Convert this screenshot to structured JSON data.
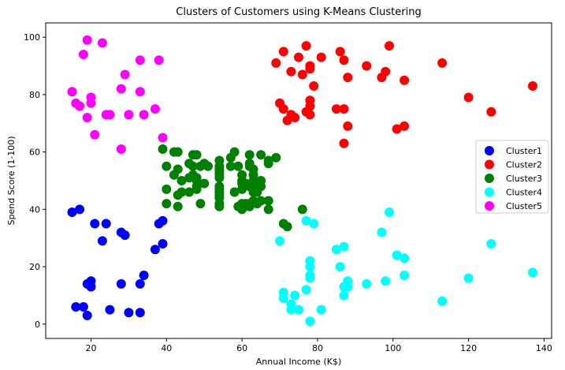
{
  "chart_data": {
    "type": "scatter",
    "title": "Clusters of Customers using K-Means Clustering",
    "xlabel": "Annual Income (K$)",
    "ylabel": "Spend Score (1-100)",
    "xlim": [
      8,
      142
    ],
    "ylim": [
      -5,
      105
    ],
    "xticks": [
      20,
      40,
      60,
      80,
      100,
      120,
      140
    ],
    "yticks": [
      0,
      20,
      40,
      60,
      80,
      100
    ],
    "grid": false,
    "legend_position": "center-right",
    "series": [
      {
        "name": "Cluster1",
        "color": "#0000ff",
        "points": [
          [
            15,
            39
          ],
          [
            16,
            6
          ],
          [
            17,
            40
          ],
          [
            18,
            6
          ],
          [
            19,
            14
          ],
          [
            19,
            3
          ],
          [
            20,
            15
          ],
          [
            20,
            13
          ],
          [
            21,
            35
          ],
          [
            23,
            29
          ],
          [
            24,
            35
          ],
          [
            25,
            5
          ],
          [
            28,
            32
          ],
          [
            28,
            14
          ],
          [
            29,
            31
          ],
          [
            30,
            4
          ],
          [
            33,
            4
          ],
          [
            33,
            14
          ],
          [
            34,
            17
          ],
          [
            37,
            26
          ],
          [
            38,
            35
          ],
          [
            39,
            36
          ],
          [
            39,
            28
          ]
        ]
      },
      {
        "name": "Cluster2",
        "color": "#ff0000",
        "points": [
          [
            69,
            91
          ],
          [
            70,
            77
          ],
          [
            71,
            95
          ],
          [
            71,
            75
          ],
          [
            72,
            71
          ],
          [
            73,
            88
          ],
          [
            73,
            73
          ],
          [
            74,
            72
          ],
          [
            75,
            93
          ],
          [
            76,
            87
          ],
          [
            77,
            97
          ],
          [
            77,
            74
          ],
          [
            78,
            90
          ],
          [
            78,
            76
          ],
          [
            78,
            89
          ],
          [
            78,
            78
          ],
          [
            78,
            73
          ],
          [
            79,
            83
          ],
          [
            81,
            93
          ],
          [
            85,
            75
          ],
          [
            86,
            95
          ],
          [
            87,
            63
          ],
          [
            87,
            75
          ],
          [
            87,
            92
          ],
          [
            88,
            86
          ],
          [
            88,
            69
          ],
          [
            93,
            90
          ],
          [
            97,
            86
          ],
          [
            98,
            88
          ],
          [
            99,
            97
          ],
          [
            101,
            68
          ],
          [
            103,
            85
          ],
          [
            103,
            69
          ],
          [
            113,
            91
          ],
          [
            120,
            79
          ],
          [
            126,
            74
          ],
          [
            137,
            83
          ]
        ]
      },
      {
        "name": "Cluster3",
        "color": "#008000",
        "points": [
          [
            39,
            61
          ],
          [
            40,
            55
          ],
          [
            40,
            47
          ],
          [
            40,
            42
          ],
          [
            42,
            52
          ],
          [
            42,
            60
          ],
          [
            43,
            54
          ],
          [
            43,
            60
          ],
          [
            43,
            45
          ],
          [
            43,
            41
          ],
          [
            44,
            50
          ],
          [
            44,
            46
          ],
          [
            46,
            51
          ],
          [
            46,
            46
          ],
          [
            46,
            56
          ],
          [
            47,
            55
          ],
          [
            47,
            52
          ],
          [
            47,
            59
          ],
          [
            48,
            51
          ],
          [
            48,
            59
          ],
          [
            48,
            50
          ],
          [
            48,
            48
          ],
          [
            48,
            47
          ],
          [
            49,
            55
          ],
          [
            49,
            42
          ],
          [
            50,
            49
          ],
          [
            50,
            56
          ],
          [
            51,
            55
          ],
          [
            54,
            47
          ],
          [
            54,
            45
          ],
          [
            54,
            54
          ],
          [
            54,
            53
          ],
          [
            54,
            48
          ],
          [
            54,
            52
          ],
          [
            54,
            42
          ],
          [
            54,
            51
          ],
          [
            54,
            55
          ],
          [
            54,
            41
          ],
          [
            54,
            44
          ],
          [
            54,
            57
          ],
          [
            54,
            46
          ],
          [
            57,
            58
          ],
          [
            57,
            55
          ],
          [
            58,
            60
          ],
          [
            58,
            46
          ],
          [
            59,
            55
          ],
          [
            59,
            41
          ],
          [
            60,
            49
          ],
          [
            60,
            40
          ],
          [
            60,
            42
          ],
          [
            60,
            52
          ],
          [
            60,
            47
          ],
          [
            60,
            50
          ],
          [
            61,
            42
          ],
          [
            61,
            49
          ],
          [
            62,
            41
          ],
          [
            62,
            48
          ],
          [
            62,
            59
          ],
          [
            62,
            55
          ],
          [
            62,
            56
          ],
          [
            62,
            42
          ],
          [
            63,
            50
          ],
          [
            63,
            46
          ],
          [
            63,
            43
          ],
          [
            63,
            48
          ],
          [
            63,
            52
          ],
          [
            63,
            54
          ],
          [
            64,
            42
          ],
          [
            64,
            46
          ],
          [
            65,
            48
          ],
          [
            65,
            50
          ],
          [
            65,
            43
          ],
          [
            65,
            59
          ],
          [
            67,
            43
          ],
          [
            67,
            57
          ],
          [
            67,
            56
          ],
          [
            67,
            40
          ],
          [
            69,
            58
          ],
          [
            71,
            35
          ],
          [
            72,
            34
          ],
          [
            76,
            40
          ]
        ]
      },
      {
        "name": "Cluster4",
        "color": "#00ffff",
        "points": [
          [
            70,
            29
          ],
          [
            71,
            11
          ],
          [
            71,
            9
          ],
          [
            73,
            5
          ],
          [
            73,
            7
          ],
          [
            74,
            10
          ],
          [
            75,
            5
          ],
          [
            77,
            12
          ],
          [
            77,
            36
          ],
          [
            78,
            22
          ],
          [
            78,
            17
          ],
          [
            78,
            20
          ],
          [
            78,
            16
          ],
          [
            78,
            1
          ],
          [
            79,
            35
          ],
          [
            81,
            5
          ],
          [
            85,
            26
          ],
          [
            86,
            20
          ],
          [
            87,
            27
          ],
          [
            87,
            13
          ],
          [
            87,
            10
          ],
          [
            88,
            13
          ],
          [
            88,
            15
          ],
          [
            93,
            14
          ],
          [
            97,
            32
          ],
          [
            98,
            15
          ],
          [
            99,
            39
          ],
          [
            101,
            24
          ],
          [
            103,
            17
          ],
          [
            103,
            23
          ],
          [
            113,
            8
          ],
          [
            120,
            16
          ],
          [
            126,
            28
          ],
          [
            137,
            18
          ]
        ]
      },
      {
        "name": "Cluster5",
        "color": "#ff00ff",
        "points": [
          [
            15,
            81
          ],
          [
            16,
            77
          ],
          [
            17,
            76
          ],
          [
            18,
            94
          ],
          [
            19,
            72
          ],
          [
            19,
            99
          ],
          [
            20,
            77
          ],
          [
            20,
            79
          ],
          [
            21,
            66
          ],
          [
            23,
            98
          ],
          [
            24,
            73
          ],
          [
            25,
            73
          ],
          [
            28,
            82
          ],
          [
            28,
            61
          ],
          [
            29,
            87
          ],
          [
            30,
            73
          ],
          [
            33,
            92
          ],
          [
            33,
            81
          ],
          [
            34,
            73
          ],
          [
            37,
            75
          ],
          [
            38,
            92
          ],
          [
            39,
            65
          ]
        ]
      }
    ]
  }
}
